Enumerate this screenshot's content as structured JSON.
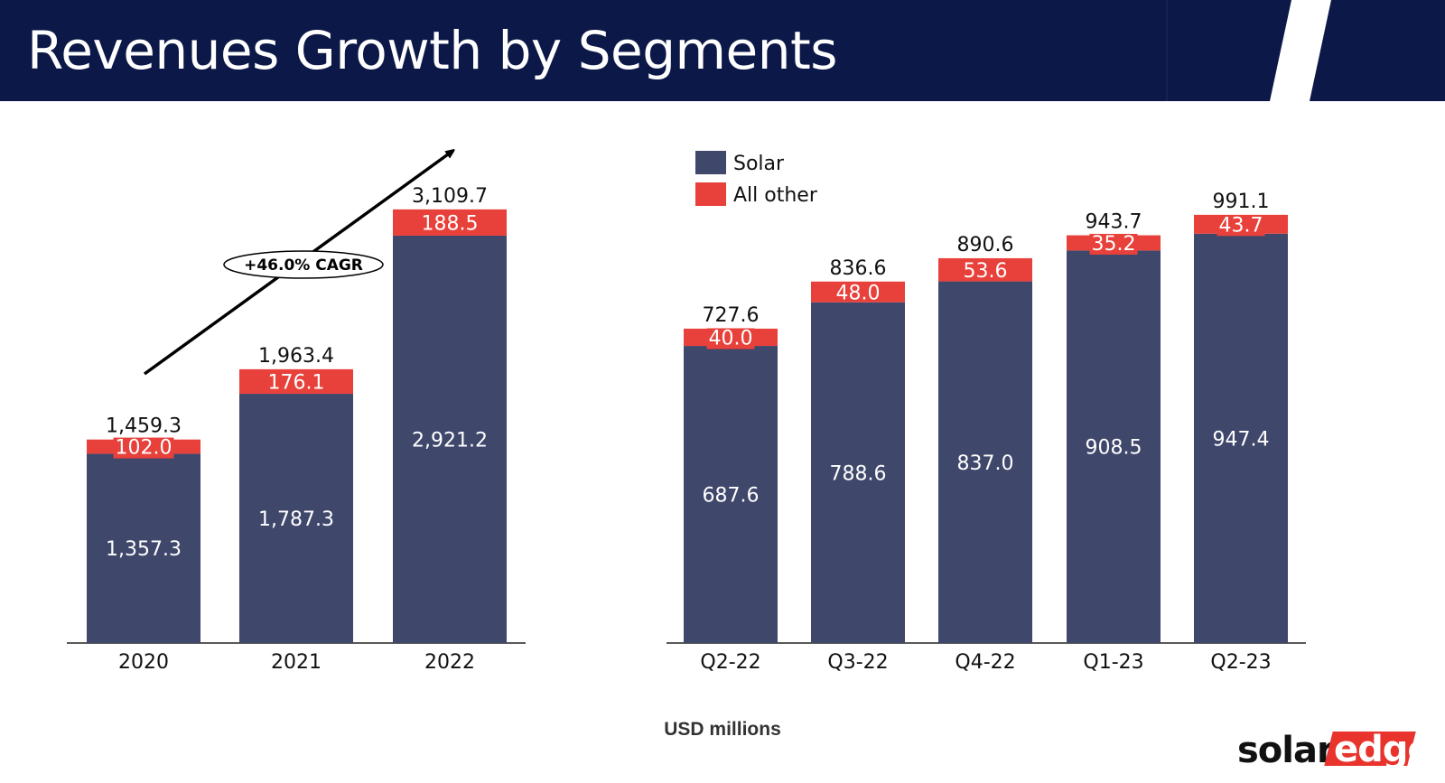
{
  "header": {
    "title": "Revenues Growth by Segments"
  },
  "colors": {
    "solar": "#3f476b",
    "other": "#e8403a",
    "header": "#0c1847"
  },
  "footer": {
    "unit_label": "USD millions"
  },
  "logo": {
    "part1": "solar",
    "part2": "edge"
  },
  "chart_data": [
    {
      "type": "bar",
      "stacked": true,
      "categories": [
        "2020",
        "2021",
        "2022"
      ],
      "series": [
        {
          "values": [
            1357.3,
            1787.3,
            2921.2
          ]
        },
        {
          "values": [
            102.0,
            176.1,
            188.5
          ]
        }
      ],
      "totals": [
        1459.3,
        1963.4,
        3109.7
      ],
      "value_labels_solar": [
        "1,357.3",
        "1,787.3",
        "2,921.2"
      ],
      "value_labels_other": [
        "102.0",
        "176.1",
        "188.5"
      ],
      "total_labels": [
        "1,459.3",
        "1,963.4",
        "3,109.7"
      ],
      "annotation": "+46.0% CAGR",
      "ylim": [
        0,
        3300
      ]
    },
    {
      "type": "bar",
      "stacked": true,
      "categories": [
        "Q2-22",
        "Q3-22",
        "Q4-22",
        "Q1-23",
        "Q2-23"
      ],
      "series": [
        {
          "name": "Solar",
          "values": [
            687.6,
            788.6,
            837.0,
            908.5,
            947.4
          ]
        },
        {
          "name": "All other",
          "values": [
            40.0,
            48.0,
            53.6,
            35.2,
            43.7
          ]
        }
      ],
      "totals": [
        727.6,
        836.6,
        890.6,
        943.7,
        991.1
      ],
      "value_labels_solar": [
        "687.6",
        "788.6",
        "837.0",
        "908.5",
        "947.4"
      ],
      "value_labels_other": [
        "40.0",
        "48.0",
        "53.6",
        "35.2",
        "43.7"
      ],
      "total_labels": [
        "727.6",
        "836.6",
        "890.6",
        "943.7",
        "991.1"
      ],
      "legend": [
        "Solar",
        "All other"
      ],
      "legend_position": "top-left",
      "ylim": [
        0,
        1040
      ]
    }
  ]
}
